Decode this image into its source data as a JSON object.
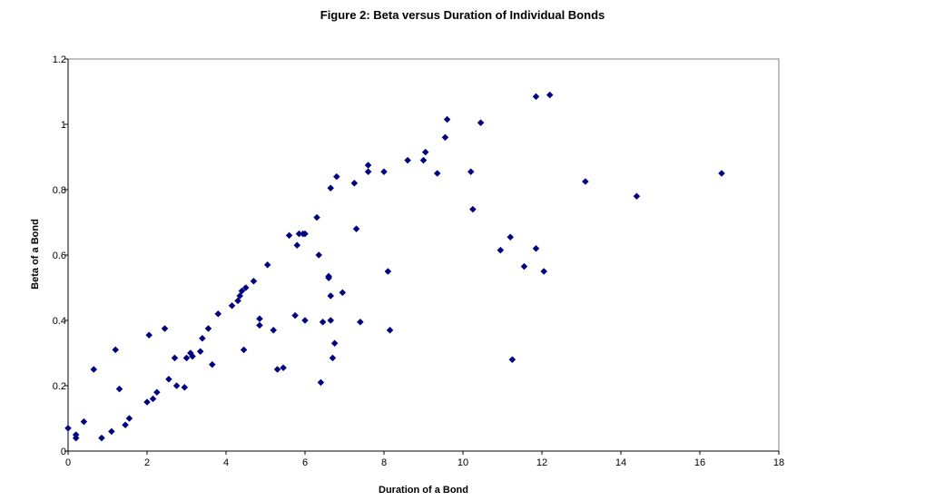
{
  "chart_data": {
    "type": "scatter",
    "title": "Figure 2: Beta versus Duration of Individual Bonds",
    "xlabel": "Duration of a Bond",
    "ylabel": "Beta of a Bond",
    "xlim": [
      0,
      18
    ],
    "ylim": [
      0,
      1.2
    ],
    "x_ticks": [
      "0",
      "2",
      "4",
      "6",
      "8",
      "10",
      "12",
      "14",
      "16",
      "18"
    ],
    "y_ticks": [
      "0",
      "0.2",
      "0.4",
      "0.6",
      "0.8",
      "1",
      "1.2"
    ],
    "grid": false,
    "legend": "none",
    "marker_color": "#000080",
    "marker_shape": "diamond",
    "points": [
      [
        0.0,
        0.07
      ],
      [
        0.2,
        0.04
      ],
      [
        0.2,
        0.05
      ],
      [
        0.4,
        0.09
      ],
      [
        0.65,
        0.25
      ],
      [
        0.85,
        0.04
      ],
      [
        1.1,
        0.06
      ],
      [
        1.2,
        0.31
      ],
      [
        1.3,
        0.19
      ],
      [
        1.45,
        0.08
      ],
      [
        1.55,
        0.1
      ],
      [
        2.0,
        0.15
      ],
      [
        2.05,
        0.355
      ],
      [
        2.15,
        0.16
      ],
      [
        2.25,
        0.18
      ],
      [
        2.45,
        0.375
      ],
      [
        2.55,
        0.22
      ],
      [
        2.7,
        0.285
      ],
      [
        2.75,
        0.2
      ],
      [
        2.95,
        0.195
      ],
      [
        3.0,
        0.285
      ],
      [
        3.1,
        0.3
      ],
      [
        3.15,
        0.29
      ],
      [
        3.35,
        0.305
      ],
      [
        3.4,
        0.345
      ],
      [
        3.55,
        0.375
      ],
      [
        3.65,
        0.265
      ],
      [
        3.8,
        0.42
      ],
      [
        4.15,
        0.445
      ],
      [
        4.3,
        0.46
      ],
      [
        4.35,
        0.475
      ],
      [
        4.4,
        0.49
      ],
      [
        4.45,
        0.31
      ],
      [
        4.5,
        0.5
      ],
      [
        4.7,
        0.52
      ],
      [
        4.85,
        0.405
      ],
      [
        4.85,
        0.385
      ],
      [
        5.05,
        0.57
      ],
      [
        5.2,
        0.37
      ],
      [
        5.3,
        0.25
      ],
      [
        5.45,
        0.255
      ],
      [
        5.6,
        0.66
      ],
      [
        5.75,
        0.415
      ],
      [
        5.8,
        0.63
      ],
      [
        5.85,
        0.665
      ],
      [
        5.95,
        0.665
      ],
      [
        6.0,
        0.665
      ],
      [
        6.0,
        0.4
      ],
      [
        6.3,
        0.715
      ],
      [
        6.35,
        0.6
      ],
      [
        6.4,
        0.21
      ],
      [
        6.45,
        0.395
      ],
      [
        6.6,
        0.53
      ],
      [
        6.6,
        0.535
      ],
      [
        6.65,
        0.475
      ],
      [
        6.65,
        0.805
      ],
      [
        6.65,
        0.4
      ],
      [
        6.7,
        0.285
      ],
      [
        6.75,
        0.33
      ],
      [
        6.8,
        0.84
      ],
      [
        6.95,
        0.485
      ],
      [
        7.25,
        0.82
      ],
      [
        7.3,
        0.68
      ],
      [
        7.4,
        0.395
      ],
      [
        7.6,
        0.855
      ],
      [
        7.6,
        0.875
      ],
      [
        8.0,
        0.855
      ],
      [
        8.1,
        0.55
      ],
      [
        8.15,
        0.37
      ],
      [
        8.6,
        0.89
      ],
      [
        9.0,
        0.89
      ],
      [
        9.05,
        0.915
      ],
      [
        9.35,
        0.85
      ],
      [
        9.55,
        0.96
      ],
      [
        9.6,
        1.015
      ],
      [
        10.2,
        0.855
      ],
      [
        10.25,
        0.74
      ],
      [
        10.45,
        1.005
      ],
      [
        10.95,
        0.615
      ],
      [
        11.2,
        0.655
      ],
      [
        11.25,
        0.28
      ],
      [
        11.55,
        0.565
      ],
      [
        11.85,
        0.62
      ],
      [
        11.85,
        1.085
      ],
      [
        12.05,
        0.55
      ],
      [
        12.2,
        1.09
      ],
      [
        13.1,
        0.825
      ],
      [
        14.4,
        0.78
      ],
      [
        16.55,
        0.85
      ]
    ]
  }
}
